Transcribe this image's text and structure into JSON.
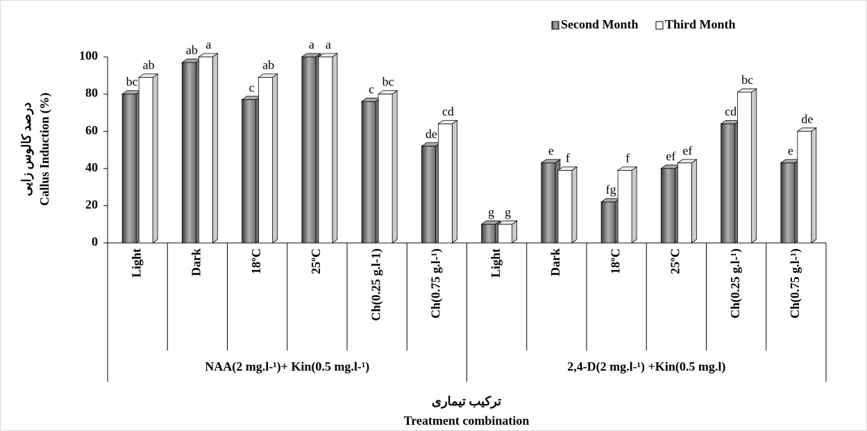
{
  "chart_data": {
    "type": "bar3d",
    "y_label": [
      "درصد کالوس زایی",
      "Callus Induction (%)"
    ],
    "x_label": [
      "ترکیب تیماری",
      "Treatment combination"
    ],
    "categories": [
      "Light",
      "Dark",
      "18ºC",
      "25ºC",
      "Ch(0.25 g.l-1)",
      "Ch(0.75 g.l-¹)",
      "Light",
      "Dark",
      "18ºC",
      "25ºC",
      "Ch(0.25 g.l-¹)",
      "Ch(0.75 g.l-¹)"
    ],
    "groups": [
      {
        "name": "NAA(2 mg.l-¹)+ Kin(0.5 mg.l-¹)",
        "size": 6
      },
      {
        "name": "2,4-D(2 mg.l-¹) +Kin(0.5 mg.l)",
        "size": 6
      }
    ],
    "series": [
      {
        "name": "Second Month",
        "color": "#8c8c8c",
        "values": [
          80,
          97,
          77,
          100,
          76,
          52,
          10,
          43,
          22,
          40,
          64,
          43
        ],
        "letters": [
          "bc",
          "ab",
          "c",
          "a",
          "c",
          "de",
          "g",
          "e",
          "fg",
          "ef",
          "cd",
          "e"
        ]
      },
      {
        "name": "Third Month",
        "color": "#ffffff",
        "values": [
          89,
          100,
          89,
          100,
          80,
          64,
          10,
          39,
          39,
          43,
          81,
          60
        ],
        "letters": [
          "ab",
          "a",
          "ab",
          "a",
          "bc",
          "cd",
          "g",
          "f",
          "f",
          "ef",
          "bc",
          "de"
        ]
      }
    ],
    "ylim": [
      0,
      100
    ],
    "yticks": [
      0,
      20,
      40,
      60,
      80,
      100
    ],
    "legend": "top-right"
  }
}
